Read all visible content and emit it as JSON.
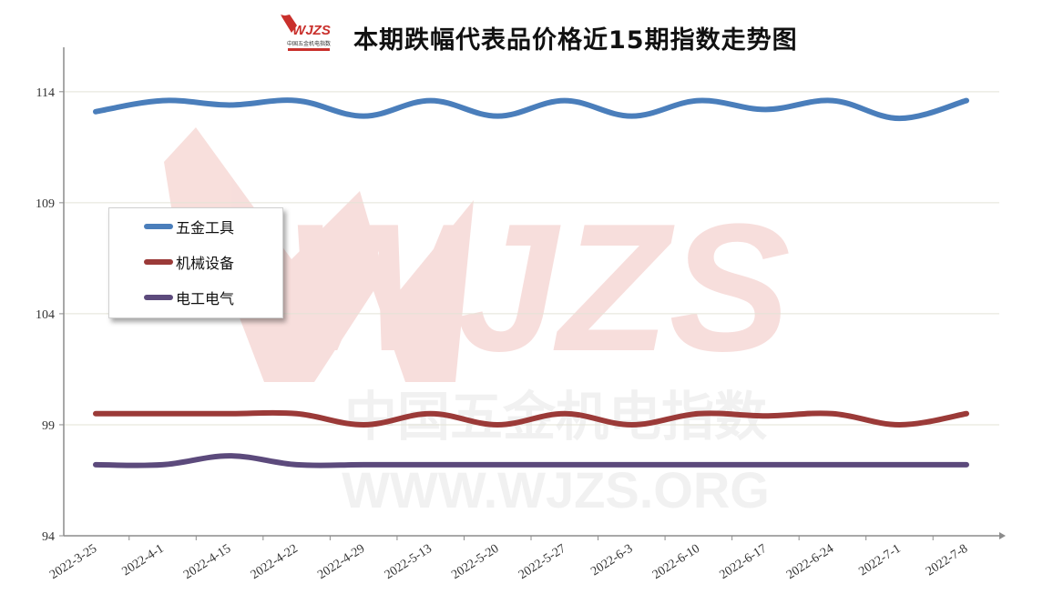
{
  "header": {
    "title": "本期跌幅代表品价格近15期指数走势图",
    "logo_text": "WJZS",
    "logo_subtext": "中国五金机电指数"
  },
  "watermark": {
    "brand": "WJZS",
    "cn_text": "中国五金机电指数",
    "url_text": "WWW.WJZS.ORG",
    "color": "#f2c4c0"
  },
  "chart_data": {
    "type": "line",
    "title": "本期跌幅代表品价格近15期指数走势图",
    "xlabel": "",
    "ylabel": "",
    "categories": [
      "2022-3-25",
      "2022-4-1",
      "2022-4-15",
      "2022-4-22",
      "2022-4-29",
      "2022-5-13",
      "2022-5-20",
      "2022-5-27",
      "2022-6-3",
      "2022-6-10",
      "2022-6-17",
      "2022-6-24",
      "2022-7-1",
      "2022-7-8"
    ],
    "ylim": [
      94,
      116
    ],
    "yticks": [
      94,
      99,
      104,
      109,
      114
    ],
    "grid": true,
    "legend_position": "left",
    "series": [
      {
        "name": "五金工具",
        "color": "#4a7ebb",
        "values": [
          113.1,
          113.6,
          113.4,
          113.6,
          112.9,
          113.6,
          112.9,
          113.6,
          112.9,
          113.6,
          113.2,
          113.6,
          112.8,
          113.6
        ]
      },
      {
        "name": "机械设备",
        "color": "#9b3a38",
        "values": [
          99.5,
          99.5,
          99.5,
          99.5,
          99.0,
          99.5,
          99.0,
          99.5,
          99.0,
          99.5,
          99.4,
          99.5,
          99.0,
          99.5
        ]
      },
      {
        "name": "电工电气",
        "color": "#5c4a7c",
        "values": [
          97.2,
          97.2,
          97.6,
          97.2,
          97.2,
          97.2,
          97.2,
          97.2,
          97.2,
          97.2,
          97.2,
          97.2,
          97.2,
          97.2
        ]
      }
    ]
  }
}
